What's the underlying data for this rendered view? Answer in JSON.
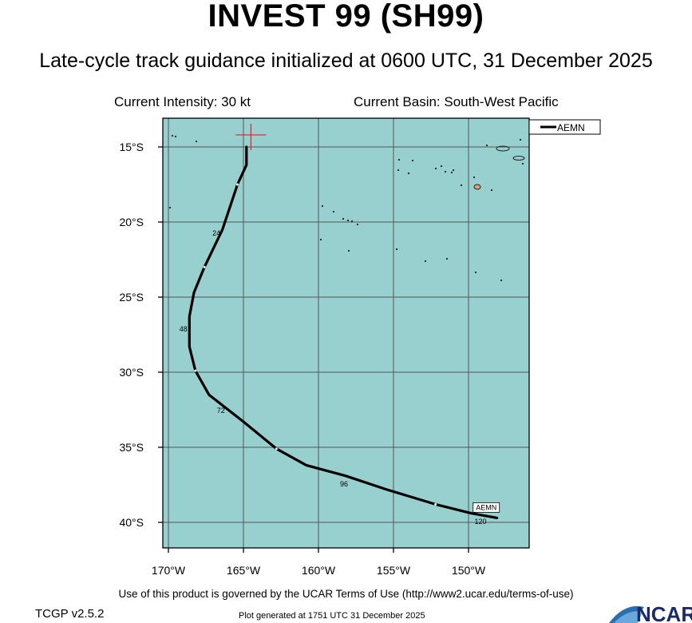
{
  "header": {
    "title": "INVEST 99 (SH99)",
    "subtitle": "Late-cycle track guidance initialized at 0600 UTC, 31 December 2025"
  },
  "info": {
    "current_intensity": "Current Intensity: 30 kt",
    "current_basin": "Current Basin: South-West Pacific"
  },
  "map": {
    "ocean_color": "#98cfcf",
    "grid_color": "#555555",
    "track_color": "#000000",
    "marker_color": "#e32020",
    "lat_labels": [
      {
        "value": -15,
        "label": "15°S"
      },
      {
        "value": -20,
        "label": "20°S"
      },
      {
        "value": -25,
        "label": "25°S"
      },
      {
        "value": -30,
        "label": "30°S"
      },
      {
        "value": -35,
        "label": "35°S"
      },
      {
        "value": -40,
        "label": "40°S"
      }
    ],
    "lon_labels": [
      {
        "value": -170,
        "label": "170°W"
      },
      {
        "value": -165,
        "label": "165°W"
      },
      {
        "value": -160,
        "label": "160°W"
      },
      {
        "value": -155,
        "label": "155°W"
      },
      {
        "value": -150,
        "label": "150°W"
      }
    ],
    "initial_position": {
      "lon": -164.5,
      "lat": -14.2
    },
    "legend": {
      "label": "AEMN"
    },
    "track": {
      "name": "AEMN",
      "points": [
        {
          "lon": -164.8,
          "lat": -15.0
        },
        {
          "lon": -164.8,
          "lat": -16.2
        },
        {
          "lon": -165.4,
          "lat": -17.5
        },
        {
          "lon": -166.4,
          "lat": -20.5
        },
        {
          "lon": -167.6,
          "lat": -23.0
        },
        {
          "lon": -168.3,
          "lat": -24.7
        },
        {
          "lon": -168.6,
          "lat": -26.3
        },
        {
          "lon": -168.6,
          "lat": -28.3
        },
        {
          "lon": -168.2,
          "lat": -29.9
        },
        {
          "lon": -167.3,
          "lat": -31.5
        },
        {
          "lon": -165.0,
          "lat": -33.3
        },
        {
          "lon": -162.8,
          "lat": -35.1
        },
        {
          "lon": -160.8,
          "lat": -36.2
        },
        {
          "lon": -158.2,
          "lat": -36.9
        },
        {
          "lon": -155.5,
          "lat": -37.8
        },
        {
          "lon": -152.2,
          "lat": -38.8
        },
        {
          "lon": -149.8,
          "lat": -39.4
        },
        {
          "lon": -148.1,
          "lat": -39.7
        }
      ],
      "tau_labels": [
        {
          "label": "24",
          "lon": -166.8,
          "lat": -20.9
        },
        {
          "label": "48",
          "lon": -169.0,
          "lat": -27.3
        },
        {
          "label": "72",
          "lon": -166.5,
          "lat": -32.7
        },
        {
          "label": "96",
          "lon": -158.3,
          "lat": -37.6
        },
        {
          "label": "120",
          "lon": -149.2,
          "lat": -40.1
        }
      ],
      "end_label": "AEMN"
    }
  },
  "footer": {
    "terms": "Use of this product is governed by the UCAR Terms of Use (http://www2.ucar.edu/terms-of-use)",
    "version": "TCGP v2.5.2",
    "generated": "Plot generated at 1751 UTC   31 December 2025",
    "logo_text": "NCAR"
  }
}
